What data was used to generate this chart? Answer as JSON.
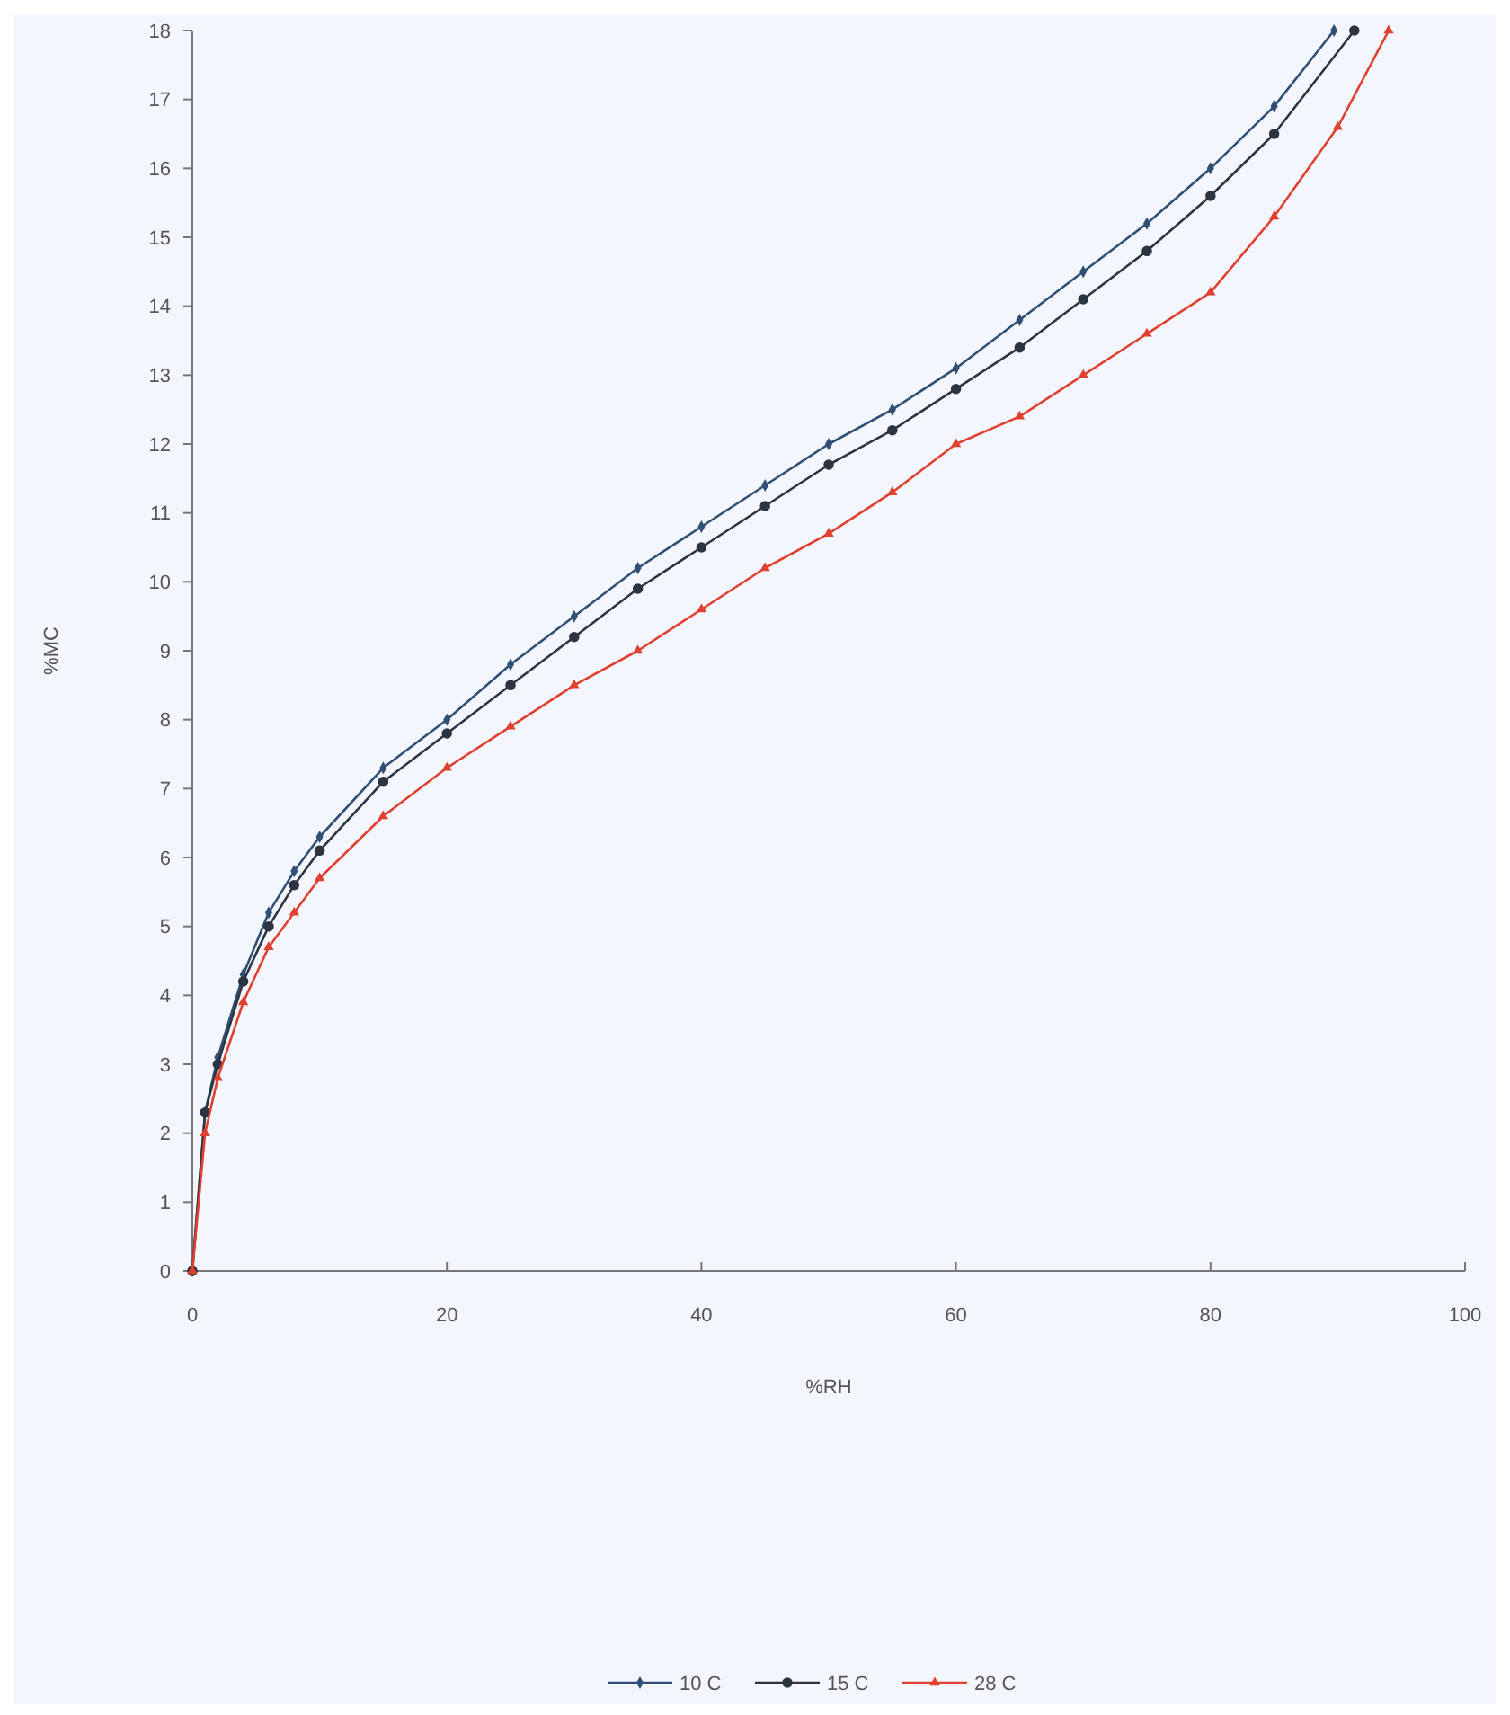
{
  "chart_data": {
    "type": "line",
    "xlabel": "%RH",
    "ylabel": "%MC",
    "xlim": [
      0,
      100
    ],
    "ylim": [
      0,
      18
    ],
    "xticks": [
      0,
      20,
      40,
      60,
      80,
      100
    ],
    "yticks": [
      0,
      1,
      2,
      3,
      4,
      5,
      6,
      7,
      8,
      9,
      10,
      11,
      12,
      13,
      14,
      15,
      16,
      17,
      18
    ],
    "grid": false,
    "legend": "bottom",
    "line_style": "solid",
    "x": [
      0,
      1,
      2,
      4,
      6,
      8,
      10,
      15,
      20,
      25,
      30,
      35,
      40,
      45,
      50,
      55,
      60,
      65,
      70,
      75,
      80,
      85,
      89.7
    ],
    "series": [
      {
        "name": "10 C",
        "color": "#2f4f75",
        "marker": "diamond",
        "values": [
          0,
          2.3,
          3.1,
          4.3,
          5.2,
          5.8,
          6.3,
          7.3,
          8.0,
          8.8,
          9.5,
          10.2,
          10.8,
          11.4,
          12.0,
          12.5,
          13.1,
          13.8,
          14.5,
          15.2,
          16.0,
          16.9,
          18
        ]
      },
      {
        "name": "15 C",
        "color": "#2b3440",
        "marker": "circle",
        "x": [
          0,
          1,
          2,
          4,
          6,
          8,
          10,
          15,
          20,
          25,
          30,
          35,
          40,
          45,
          50,
          55,
          60,
          65,
          70,
          75,
          80,
          85,
          91.3
        ],
        "values": [
          0,
          2.3,
          3.0,
          4.2,
          5.0,
          5.6,
          6.1,
          7.1,
          7.8,
          8.5,
          9.2,
          9.9,
          10.5,
          11.1,
          11.7,
          12.2,
          12.8,
          13.4,
          14.1,
          14.8,
          15.6,
          16.5,
          18
        ]
      },
      {
        "name": "28 C",
        "color": "#e04030",
        "marker": "triangle",
        "x": [
          0,
          1,
          2,
          4,
          6,
          8,
          10,
          15,
          20,
          25,
          30,
          35,
          40,
          45,
          50,
          55,
          60,
          65,
          70,
          75,
          80,
          85,
          90,
          94
        ],
        "values": [
          0,
          2.0,
          2.8,
          3.9,
          4.7,
          5.2,
          5.7,
          6.6,
          7.3,
          7.9,
          8.5,
          9.0,
          9.6,
          10.2,
          10.7,
          11.3,
          12.0,
          12.4,
          13.0,
          13.6,
          14.2,
          15.3,
          16.6,
          18
        ]
      }
    ]
  }
}
